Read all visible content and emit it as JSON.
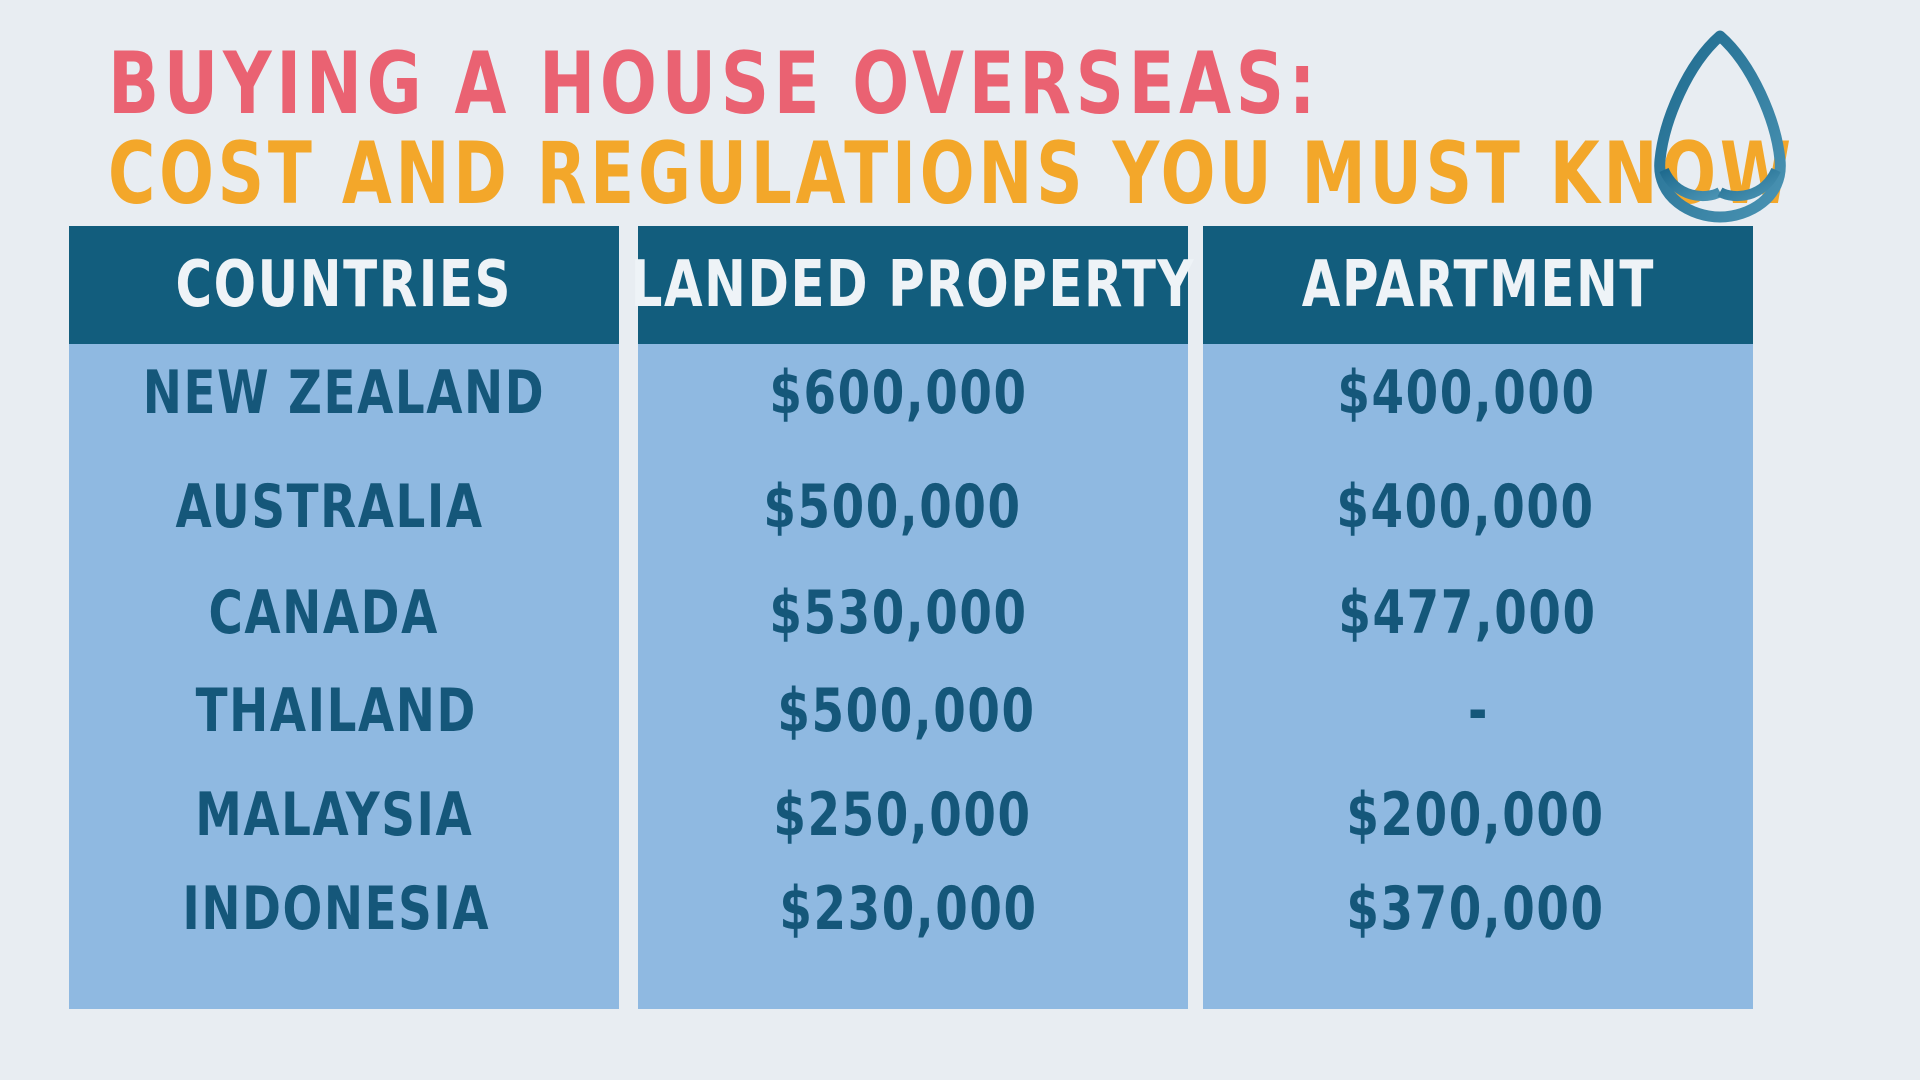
{
  "title": {
    "line1": "BUYING A HOUSE OVERSEAS:",
    "line2": "COST AND REGULATIONS YOU MUST KNOW"
  },
  "logo": {
    "icon": "leaf-logo-icon",
    "color": "#2f7ea0"
  },
  "table": {
    "headers": [
      "COUNTRIES",
      "LANDED PROPERTY",
      "APARTMENT"
    ],
    "rows": [
      {
        "country": "NEW ZEALAND",
        "landed": "$600,000",
        "apartment": "$400,000"
      },
      {
        "country": "AUSTRALIA",
        "landed": "$500,000",
        "apartment": "$400,000"
      },
      {
        "country": "CANADA",
        "landed": "$530,000",
        "apartment": "$477,000"
      },
      {
        "country": "THAILAND",
        "landed": "$500,000",
        "apartment": "-"
      },
      {
        "country": "MALAYSIA",
        "landed": "$250,000",
        "apartment": "$200,000"
      },
      {
        "country": "INDONESIA",
        "landed": "$230,000",
        "apartment": "$370,000"
      }
    ]
  },
  "colors": {
    "background": "#e8edf2",
    "header": "#125d7d",
    "body": "#8fb9e1",
    "title1": "#ea6272",
    "title2": "#f3a72a",
    "text": "#15577a"
  }
}
